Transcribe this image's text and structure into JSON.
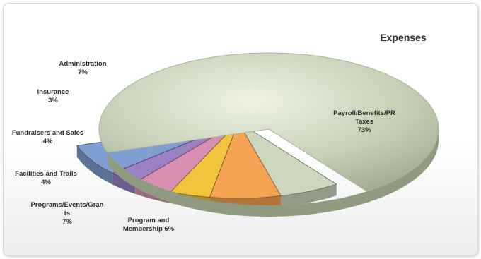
{
  "chart_data": {
    "type": "pie",
    "title": "Expenses",
    "slices": [
      {
        "label_lines": [
          "Payroll/Benefits/PR",
          "Taxes"
        ],
        "pct": "73%",
        "value": 73,
        "color": "#c3ceb3"
      },
      {
        "label_lines": [
          "Program and",
          "Membership 6%"
        ],
        "pct": "",
        "value": 6,
        "color": "#cdd7be"
      },
      {
        "label_lines": [
          "Programs/Events/Gran",
          "ts"
        ],
        "pct": "7%",
        "value": 7,
        "color": "#f3a351"
      },
      {
        "label_lines": [
          "Facilities and Trails"
        ],
        "pct": "4%",
        "value": 4,
        "color": "#f0c43c"
      },
      {
        "label_lines": [
          "Fundraisers and Sales"
        ],
        "pct": "4%",
        "value": 4,
        "color": "#d98fb2"
      },
      {
        "label_lines": [
          "Insurance"
        ],
        "pct": "3%",
        "value": 3,
        "color": "#9b80c4"
      },
      {
        "label_lines": [
          "Administration"
        ],
        "pct": "7%",
        "value": 7,
        "color": "#7f9ed1"
      }
    ]
  }
}
